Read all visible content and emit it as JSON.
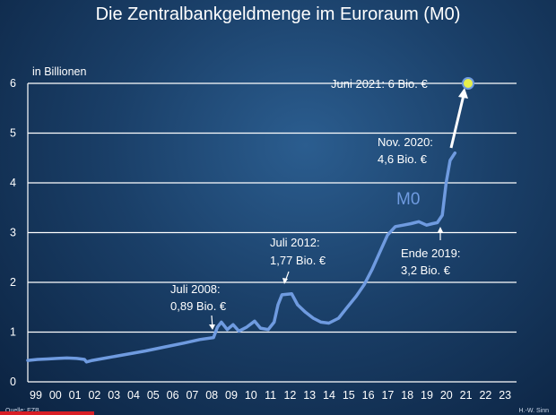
{
  "chart_data": {
    "type": "line",
    "title": "Die Zentralbankgeldmenge im Euroraum (M0)",
    "unit_label": "in Billionen",
    "series_label": "M0",
    "source": "Quelle: EZB",
    "credit": "H.-W. Sinn",
    "ylim": [
      0,
      6
    ],
    "yticks": [
      "0",
      "1",
      "2",
      "3",
      "4",
      "5",
      "6"
    ],
    "xlim": [
      1999,
      2024
    ],
    "xticks": [
      "99",
      "00",
      "01",
      "02",
      "03",
      "04",
      "05",
      "06",
      "07",
      "08",
      "09",
      "10",
      "11",
      "12",
      "13",
      "14",
      "15",
      "16",
      "17",
      "18",
      "19",
      "20",
      "21",
      "22",
      "23"
    ],
    "grid": true,
    "series": [
      {
        "values": [
          [
            1999.0,
            0.43
          ],
          [
            1999.5,
            0.45
          ],
          [
            2000.0,
            0.46
          ],
          [
            2000.5,
            0.47
          ],
          [
            2001.0,
            0.48
          ],
          [
            2001.5,
            0.47
          ],
          [
            2001.9,
            0.45
          ],
          [
            2002.0,
            0.4
          ],
          [
            2002.3,
            0.43
          ],
          [
            2003.0,
            0.48
          ],
          [
            2004.0,
            0.55
          ],
          [
            2005.0,
            0.62
          ],
          [
            2006.0,
            0.7
          ],
          [
            2007.0,
            0.78
          ],
          [
            2007.8,
            0.85
          ],
          [
            2008.5,
            0.89
          ],
          [
            2008.7,
            1.1
          ],
          [
            2008.9,
            1.2
          ],
          [
            2009.2,
            1.05
          ],
          [
            2009.5,
            1.15
          ],
          [
            2009.8,
            1.02
          ],
          [
            2010.2,
            1.1
          ],
          [
            2010.6,
            1.22
          ],
          [
            2010.9,
            1.08
          ],
          [
            2011.3,
            1.05
          ],
          [
            2011.6,
            1.2
          ],
          [
            2011.8,
            1.55
          ],
          [
            2012.0,
            1.75
          ],
          [
            2012.5,
            1.77
          ],
          [
            2012.8,
            1.55
          ],
          [
            2013.2,
            1.4
          ],
          [
            2013.6,
            1.28
          ],
          [
            2014.0,
            1.2
          ],
          [
            2014.4,
            1.18
          ],
          [
            2014.9,
            1.28
          ],
          [
            2015.3,
            1.48
          ],
          [
            2015.8,
            1.72
          ],
          [
            2016.2,
            1.95
          ],
          [
            2016.6,
            2.25
          ],
          [
            2017.0,
            2.6
          ],
          [
            2017.4,
            2.95
          ],
          [
            2017.8,
            3.12
          ],
          [
            2018.2,
            3.15
          ],
          [
            2018.6,
            3.18
          ],
          [
            2019.0,
            3.22
          ],
          [
            2019.4,
            3.15
          ],
          [
            2019.7,
            3.18
          ],
          [
            2019.95,
            3.2
          ],
          [
            2020.2,
            3.35
          ],
          [
            2020.4,
            4.0
          ],
          [
            2020.6,
            4.45
          ],
          [
            2020.85,
            4.6
          ]
        ]
      }
    ],
    "annotations": [
      {
        "lines": [
          "Juli 2008:",
          "0,89 Bio. €"
        ]
      },
      {
        "lines": [
          "Juli 2012:",
          "1,77 Bio. €"
        ]
      },
      {
        "lines": [
          "Ende 2019:",
          "3,2 Bio. €"
        ]
      },
      {
        "lines": [
          "Nov. 2020:",
          "4,6 Bio. €"
        ]
      },
      {
        "lines": [
          "Juni 2021: 6 Bio. €"
        ]
      }
    ],
    "projection_point": {
      "x": 2021.45,
      "y": 6
    },
    "colors": {
      "line": "#6f9be0",
      "grid": "#ffffff",
      "text": "#ffffff",
      "marker": "#e8f04a"
    }
  }
}
